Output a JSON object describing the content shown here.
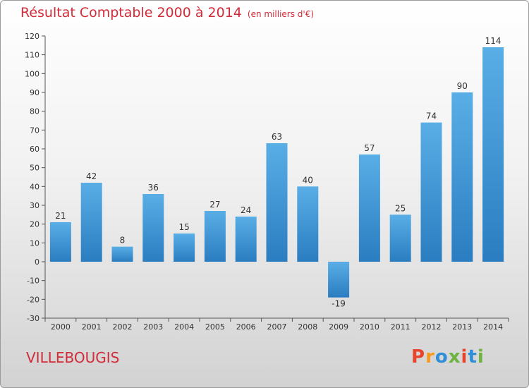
{
  "title": "Résultat Comptable 2000 à 2014",
  "subtitle": "(en milliers d'€)",
  "commune": "VILLEBOUGIS",
  "logo": {
    "text": "Proxiti",
    "colors": [
      "#e8442b",
      "#f39a1f",
      "#2f8ed8",
      "#6cb33f",
      "#e8442b",
      "#2f8ed8",
      "#6cb33f"
    ]
  },
  "colors": {
    "title": "#d12c39",
    "bar_light": "#5aaee6",
    "bar_dark": "#2a7dc0",
    "axis": "#555555"
  },
  "chart_data": {
    "type": "bar",
    "categories": [
      "2000",
      "2001",
      "2002",
      "2003",
      "2004",
      "2005",
      "2006",
      "2007",
      "2008",
      "2009",
      "2010",
      "2011",
      "2012",
      "2013",
      "2014"
    ],
    "values": [
      21,
      42,
      8,
      36,
      15,
      27,
      24,
      63,
      40,
      -19,
      57,
      25,
      74,
      90,
      114
    ],
    "value_labels": [
      "21",
      "42",
      "8",
      "36",
      "15",
      "27",
      "24",
      "63",
      "40",
      "-19",
      "57",
      "25",
      "74",
      "90",
      "114"
    ],
    "ylim": [
      -30,
      120
    ],
    "yticks": [
      "-30",
      "-20",
      "-10",
      "0",
      "10",
      "20",
      "30",
      "40",
      "50",
      "60",
      "70",
      "80",
      "90",
      "100",
      "110",
      "120"
    ],
    "grid": false,
    "title": "Résultat Comptable 2000 à 2014",
    "xlabel": "",
    "ylabel": ""
  }
}
